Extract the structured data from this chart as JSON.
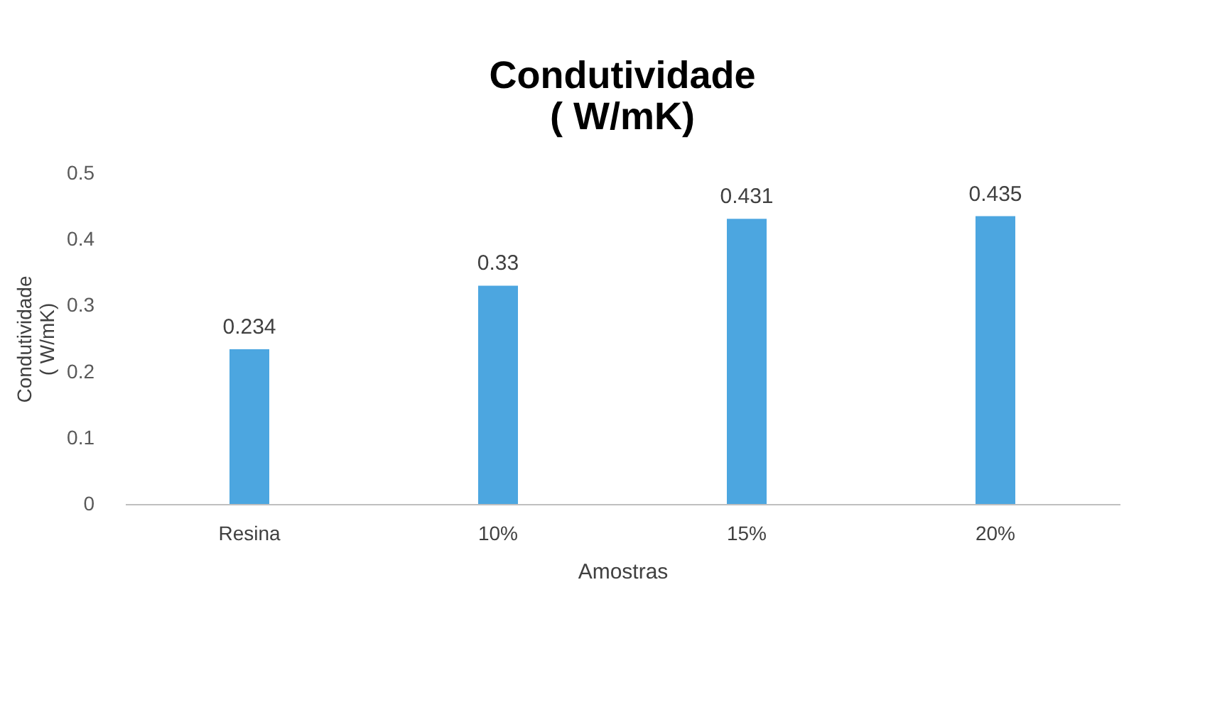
{
  "chart_data": {
    "type": "bar",
    "title": "Condutividade\n( W/mK)",
    "xlabel": "Amostras",
    "ylabel": "Condutividade\n( W/mK)",
    "categories": [
      "Resina",
      "10%",
      "15%",
      "20%"
    ],
    "values": [
      0.234,
      0.33,
      0.431,
      0.435
    ],
    "color": "#4ca6e0",
    "ylim": [
      0,
      0.5
    ],
    "yticks": [
      0,
      0.1,
      0.2,
      0.3,
      0.4,
      0.5
    ],
    "grid": false,
    "data_labels": true
  }
}
